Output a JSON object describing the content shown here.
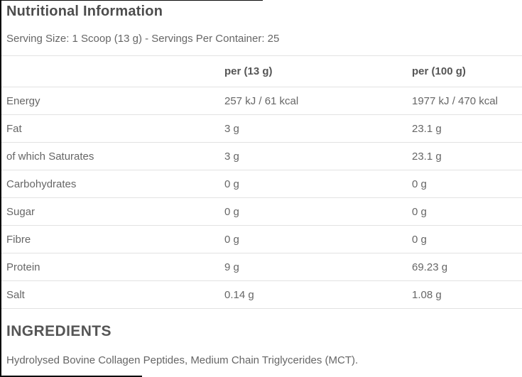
{
  "page": {
    "title": "Nutritional Information",
    "serving_info": "Serving Size: 1 Scoop (13 g) - Servings Per Container: 25"
  },
  "table": {
    "headers": {
      "label": "",
      "per13": "per (13 g)",
      "per100": "per (100 g)"
    },
    "rows": [
      {
        "label": "Energy",
        "per13": "257 kJ / 61 kcal",
        "per100": "1977 kJ / 470 kcal"
      },
      {
        "label": "Fat",
        "per13": "3 g",
        "per100": "23.1 g"
      },
      {
        "label": "of which Saturates",
        "per13": "3 g",
        "per100": "23.1 g"
      },
      {
        "label": "Carbohydrates",
        "per13": "0 g",
        "per100": "0 g"
      },
      {
        "label": "Sugar",
        "per13": "0 g",
        "per100": "0 g"
      },
      {
        "label": "Fibre",
        "per13": "0 g",
        "per100": "0 g"
      },
      {
        "label": "Protein",
        "per13": "9 g",
        "per100": "69.23 g"
      },
      {
        "label": "Salt",
        "per13": "0.14 g",
        "per100": "1.08 g"
      }
    ]
  },
  "ingredients": {
    "heading": "INGREDIENTS",
    "text": "Hydrolysed Bovine Collagen Peptides, Medium Chain Triglycerides (MCT)."
  },
  "colors": {
    "title_text": "#4d4d4d",
    "body_text": "#666666",
    "header_text": "#555555",
    "separator": "#e2e2e2",
    "crop_edge": "#0a0a0a"
  }
}
